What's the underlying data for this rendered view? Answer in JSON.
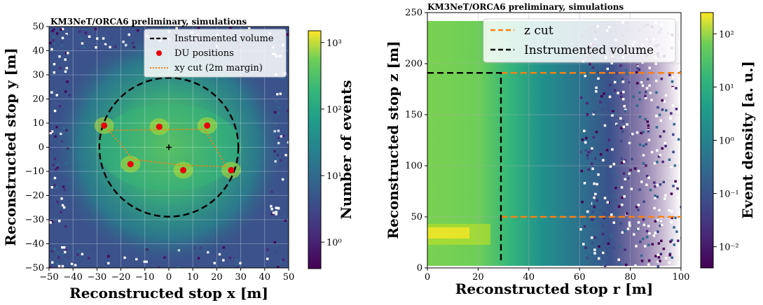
{
  "chart_data": [
    {
      "type": "heatmap",
      "title": "KM3NeT/ORCA6 preliminary, simulations",
      "xlabel": "Reconstructed stop x [m]",
      "ylabel": "Reconstructed stop y [m]",
      "xlim": [
        -50,
        50
      ],
      "ylim": [
        -50,
        50
      ],
      "xticks": [
        "−50",
        "−40",
        "−30",
        "−20",
        "−10",
        "0",
        "10",
        "20",
        "30",
        "40",
        "50"
      ],
      "yticks": [
        "−50",
        "−40",
        "−30",
        "−20",
        "−10",
        "0",
        "10",
        "20",
        "30",
        "40",
        "50"
      ],
      "grid": true,
      "colorbar": {
        "label": "Number of events",
        "scale": "log",
        "range": [
          0.4,
          1500
        ],
        "ticks": [
          {
            "value": 1,
            "label": "10⁰"
          },
          {
            "value": 10,
            "label": "10¹"
          },
          {
            "value": 100,
            "label": "10²"
          },
          {
            "value": 1000,
            "label": "10³"
          }
        ]
      },
      "legend": {
        "position": "top-right",
        "entries": [
          {
            "label": "Instrumented volume",
            "style": "dashed-black"
          },
          {
            "label": "DU positions",
            "style": "red-dot"
          },
          {
            "label": "xy cut (2m margin)",
            "style": "dotted-orange"
          }
        ]
      },
      "instrumented_volume": {
        "shape": "circle",
        "center": [
          0,
          0
        ],
        "radius": 29
      },
      "du_positions": [
        {
          "x": -27,
          "y": 9
        },
        {
          "x": -4,
          "y": 8.5
        },
        {
          "x": 16,
          "y": 9
        },
        {
          "x": -16,
          "y": -7
        },
        {
          "x": 6,
          "y": -9.5
        },
        {
          "x": 26,
          "y": -9.5
        }
      ],
      "xy_cut_polygon": [
        {
          "x": -25,
          "y": 7
        },
        {
          "x": 15,
          "y": 7.5
        },
        {
          "x": 24,
          "y": -8
        },
        {
          "x": 6,
          "y": -7.5
        },
        {
          "x": -15,
          "y": -5
        }
      ],
      "center_marker": {
        "x": 0,
        "y": 0
      }
    },
    {
      "type": "heatmap",
      "title": "KM3NeT/ORCA6 preliminary, simulations",
      "xlabel": "Reconstructed stop r [m]",
      "ylabel": "Reconstructed stop z [m]",
      "xlim": [
        0,
        100
      ],
      "ylim": [
        0,
        250
      ],
      "xticks": [
        "0",
        "20",
        "40",
        "60",
        "80",
        "100"
      ],
      "yticks": [
        "0",
        "50",
        "100",
        "150",
        "200",
        "250"
      ],
      "grid": true,
      "colorbar": {
        "label": "Event density [a. u.]",
        "scale": "log",
        "range": [
          0.004,
          250
        ],
        "ticks": [
          {
            "value": 0.01,
            "label": "10⁻²"
          },
          {
            "value": 0.1,
            "label": "10⁻¹"
          },
          {
            "value": 1,
            "label": "10⁰"
          },
          {
            "value": 10,
            "label": "10¹"
          },
          {
            "value": 100,
            "label": "10²"
          }
        ]
      },
      "legend": {
        "position": "top-right",
        "entries": [
          {
            "label": "z cut",
            "style": "dashed-orange"
          },
          {
            "label": "Instrumented volume",
            "style": "dashed-black"
          }
        ]
      },
      "z_cuts": [
        50,
        191
      ],
      "instrumented_volume": {
        "r_max": 29,
        "z_min": 5,
        "z_max": 191
      }
    }
  ]
}
